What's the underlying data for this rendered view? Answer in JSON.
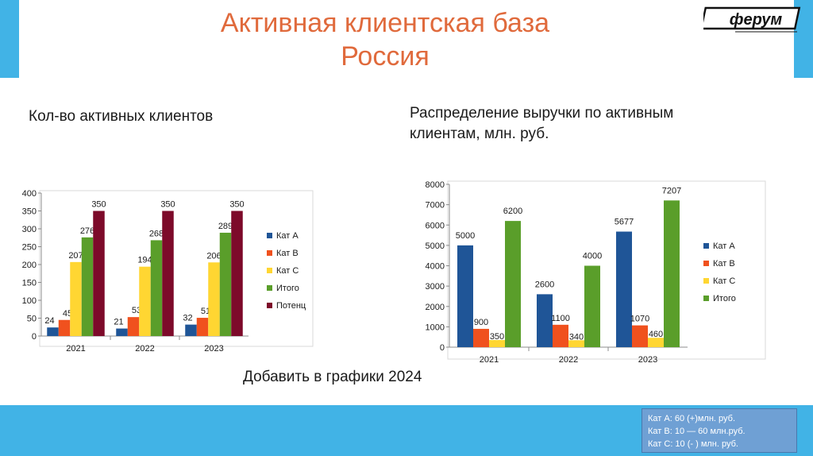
{
  "slide": {
    "title_line1": "Активная клиентская база",
    "title_line2": "Россия",
    "left_heading": "Кол-во активных клиентов",
    "right_heading_line1": "Распределение выручки по активным",
    "right_heading_line2": "клиентам, млн. руб.",
    "footer_text": "Добавить в графики 2024",
    "logo_text": "ферум",
    "notes": [
      "Кат А: 60 (+)млн. руб.",
      "Кат В: 10 — 60 млн.руб.",
      "Кат С: 10 (- ) млн. руб."
    ],
    "colors": {
      "band": "#41b3e6",
      "title": "#e06a3c",
      "note_box": "#6fa0d4"
    }
  },
  "chart_data": [
    {
      "type": "bar",
      "categories": [
        "2021",
        "2022",
        "2023"
      ],
      "ylim": [
        0,
        400
      ],
      "yticks": [
        0,
        50,
        100,
        150,
        200,
        250,
        300,
        350,
        400
      ],
      "legend": "right",
      "grid": false,
      "series": [
        {
          "name": "Кат А",
          "color": "#1f5597",
          "values": [
            24,
            21,
            32
          ]
        },
        {
          "name": "Кат В",
          "color": "#f0511e",
          "values": [
            45,
            53,
            51
          ]
        },
        {
          "name": "Кат С",
          "color": "#ffd632",
          "values": [
            207,
            194,
            206
          ]
        },
        {
          "name": "Итого",
          "color": "#5a9e2a",
          "values": [
            276,
            268,
            289
          ]
        },
        {
          "name": "Потенц",
          "color": "#7d0a2a",
          "values": [
            350,
            350,
            350
          ]
        }
      ]
    },
    {
      "type": "bar",
      "categories": [
        "2021",
        "2022",
        "2023"
      ],
      "ylim": [
        0,
        8000
      ],
      "yticks": [
        0,
        1000,
        2000,
        3000,
        4000,
        5000,
        6000,
        7000,
        8000
      ],
      "legend": "right",
      "grid": false,
      "series": [
        {
          "name": "Кат А",
          "color": "#1f5597",
          "values": [
            5000,
            2600,
            5677
          ]
        },
        {
          "name": "Кат В",
          "color": "#f0511e",
          "values": [
            900,
            1100,
            1070
          ]
        },
        {
          "name": "Кат С",
          "color": "#ffd632",
          "values": [
            350,
            340,
            460
          ]
        },
        {
          "name": "Итого",
          "color": "#5a9e2a",
          "values": [
            6200,
            4000,
            7207
          ]
        }
      ]
    }
  ]
}
